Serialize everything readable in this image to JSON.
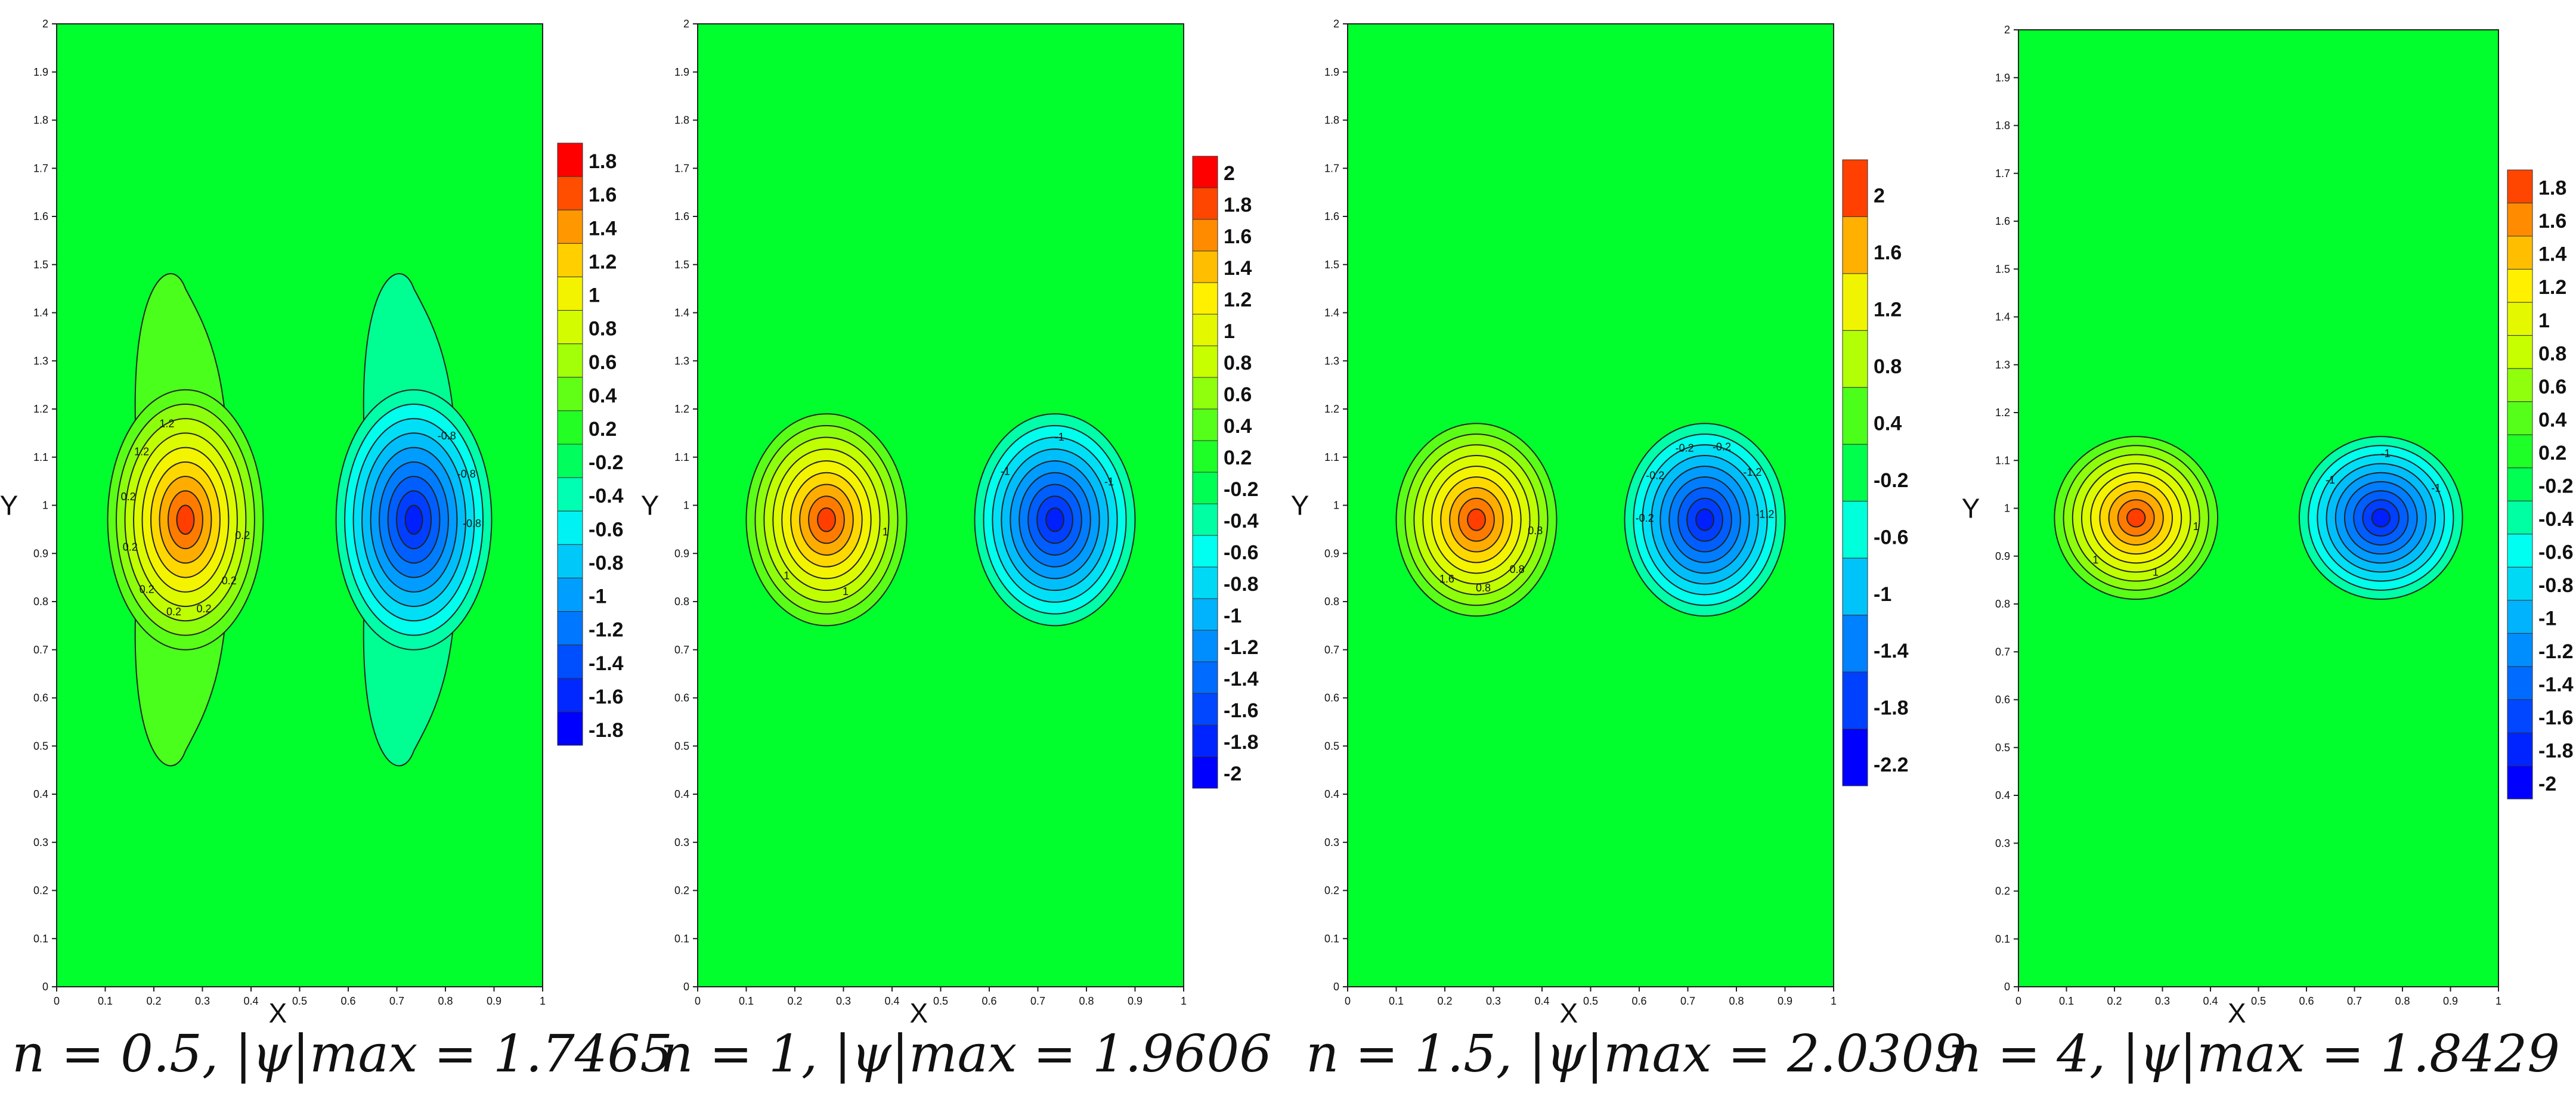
{
  "colors": {
    "bg_field": "#00ff2c"
  },
  "chart_data": [
    {
      "type": "contour",
      "caption": "n = 0.5, |ψ|max = 1.7465",
      "caption_parts": {
        "n": "0.5",
        "psi_max": "1.7465"
      },
      "xlabel": "X",
      "ylabel": "Y",
      "xlim": [
        0,
        1
      ],
      "ylim": [
        0,
        2
      ],
      "x_ticks": [
        "0",
        "0.1",
        "0.2",
        "0.3",
        "0.4",
        "0.5",
        "0.6",
        "0.7",
        "0.8",
        "0.9",
        "1"
      ],
      "y_ticks": [
        "0",
        "0.1",
        "0.2",
        "0.3",
        "0.4",
        "0.5",
        "0.6",
        "0.7",
        "0.8",
        "0.9",
        "1",
        "1.1",
        "1.2",
        "1.3",
        "1.4",
        "1.5",
        "1.6",
        "1.7",
        "1.8",
        "1.9",
        "2"
      ],
      "colorbar_levels": [
        "1.8",
        "1.6",
        "1.4",
        "1.2",
        "1",
        "0.8",
        "0.6",
        "0.4",
        "0.2",
        "-0.2",
        "-0.4",
        "-0.6",
        "-0.8",
        "-1",
        "-1.2",
        "-1.4",
        "-1.6",
        "-1.8"
      ],
      "contour_labels": [
        "0.2",
        "0.2",
        "0.2",
        "0.2",
        "0.2",
        "0.2",
        "0.2",
        "1.2",
        "1.2",
        "-0.8",
        "-0.8",
        "-0.8"
      ],
      "vortices": [
        {
          "x": 0.265,
          "y": 0.97,
          "value": 1.7465,
          "sx": 0.16,
          "sy": 0.27,
          "tail": 0.3
        },
        {
          "x": 0.735,
          "y": 0.97,
          "value": -1.7465,
          "sx": 0.16,
          "sy": 0.27,
          "tail": 0.3
        }
      ]
    },
    {
      "type": "contour",
      "caption": "n = 1, |ψ|max = 1.9606",
      "caption_parts": {
        "n": "1",
        "psi_max": "1.9606"
      },
      "xlabel": "X",
      "ylabel": "Y",
      "xlim": [
        0,
        1
      ],
      "ylim": [
        0,
        2
      ],
      "x_ticks": [
        "0",
        "0.1",
        "0.2",
        "0.3",
        "0.4",
        "0.5",
        "0.6",
        "0.7",
        "0.8",
        "0.9",
        "1"
      ],
      "y_ticks": [
        "0",
        "0.1",
        "0.2",
        "0.3",
        "0.4",
        "0.5",
        "0.6",
        "0.7",
        "0.8",
        "0.9",
        "1",
        "1.1",
        "1.2",
        "1.3",
        "1.4",
        "1.5",
        "1.6",
        "1.7",
        "1.8",
        "1.9",
        "2"
      ],
      "colorbar_levels": [
        "2",
        "1.8",
        "1.6",
        "1.4",
        "1.2",
        "1",
        "0.8",
        "0.6",
        "0.4",
        "0.2",
        "-0.2",
        "-0.4",
        "-0.6",
        "-0.8",
        "-1",
        "-1.2",
        "-1.4",
        "-1.6",
        "-1.8",
        "-2"
      ],
      "contour_labels": [
        "1",
        "1",
        "1",
        "-1",
        "-1",
        "-1"
      ],
      "vortices": [
        {
          "x": 0.265,
          "y": 0.97,
          "value": 1.9606,
          "sx": 0.165,
          "sy": 0.22,
          "tail": 0
        },
        {
          "x": 0.735,
          "y": 0.97,
          "value": -1.9606,
          "sx": 0.165,
          "sy": 0.22,
          "tail": 0
        }
      ]
    },
    {
      "type": "contour",
      "caption": "n = 1.5, |ψ|max = 2.0309",
      "caption_parts": {
        "n": "1.5",
        "psi_max": "2.0309"
      },
      "xlabel": "X",
      "ylabel": "Y",
      "xlim": [
        0,
        1
      ],
      "ylim": [
        0,
        2
      ],
      "x_ticks": [
        "0",
        "0.1",
        "0.2",
        "0.3",
        "0.4",
        "0.5",
        "0.6",
        "0.7",
        "0.8",
        "0.9",
        "1"
      ],
      "y_ticks": [
        "0",
        "0.1",
        "0.2",
        "0.3",
        "0.4",
        "0.5",
        "0.6",
        "0.7",
        "0.8",
        "0.9",
        "1",
        "1.1",
        "1.2",
        "1.3",
        "1.4",
        "1.5",
        "1.6",
        "1.7",
        "1.8",
        "1.9",
        "2"
      ],
      "colorbar_levels": [
        "2",
        "1.6",
        "1.2",
        "0.8",
        "0.4",
        "-0.2",
        "-0.6",
        "-1",
        "-1.4",
        "-1.8",
        "-2.2"
      ],
      "contour_labels": [
        "0.8",
        "0.8",
        "0.8",
        "1.6",
        "-0.2",
        "-0.2",
        "-0.2",
        "-0.2",
        "-1.2",
        "-1.2"
      ],
      "vortices": [
        {
          "x": 0.265,
          "y": 0.97,
          "value": 2.0309,
          "sx": 0.165,
          "sy": 0.2,
          "tail": 0
        },
        {
          "x": 0.735,
          "y": 0.97,
          "value": -2.0309,
          "sx": 0.165,
          "sy": 0.2,
          "tail": 0
        }
      ]
    },
    {
      "type": "contour",
      "caption": "n = 4, |ψ|max = 1.8429",
      "caption_parts": {
        "n": "4",
        "psi_max": "1.8429"
      },
      "xlabel": "X",
      "ylabel": "Y",
      "xlim": [
        0,
        1
      ],
      "ylim": [
        0,
        2
      ],
      "x_ticks": [
        "0",
        "0.1",
        "0.2",
        "0.3",
        "0.4",
        "0.5",
        "0.6",
        "0.7",
        "0.8",
        "0.9",
        "1"
      ],
      "y_ticks": [
        "0",
        "0.1",
        "0.2",
        "0.3",
        "0.4",
        "0.5",
        "0.6",
        "0.7",
        "0.8",
        "0.9",
        "1",
        "1.1",
        "1.2",
        "1.3",
        "1.4",
        "1.5",
        "1.6",
        "1.7",
        "1.8",
        "1.9",
        "2"
      ],
      "colorbar_levels": [
        "1.8",
        "1.6",
        "1.4",
        "1.2",
        "1",
        "0.8",
        "0.6",
        "0.4",
        "0.2",
        "-0.2",
        "-0.4",
        "-0.6",
        "-0.8",
        "-1",
        "-1.2",
        "-1.4",
        "-1.6",
        "-1.8",
        "-2"
      ],
      "contour_labels": [
        "1",
        "1",
        "1",
        "-1",
        "-1",
        "-1"
      ],
      "vortices": [
        {
          "x": 0.245,
          "y": 0.98,
          "value": 1.8429,
          "sx": 0.17,
          "sy": 0.17,
          "tail": 0
        },
        {
          "x": 0.755,
          "y": 0.98,
          "value": -1.8429,
          "sx": 0.17,
          "sy": 0.17,
          "tail": 0
        }
      ]
    }
  ]
}
